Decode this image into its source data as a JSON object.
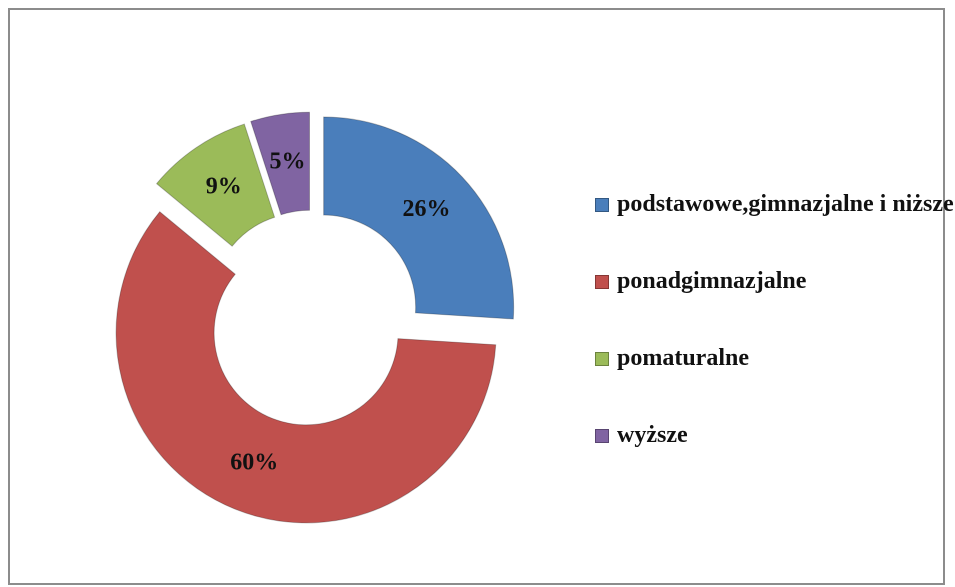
{
  "chart_data": {
    "type": "donut",
    "categories": [
      "podstawowe,gimnazjalne i niższe",
      "ponadgimnazjalne",
      "pomaturalne",
      "wyższe"
    ],
    "values": [
      26,
      60,
      9,
      5
    ],
    "value_labels": [
      "26%",
      "60%",
      "9%",
      "5%"
    ],
    "colors": [
      "#4a7ebb",
      "#c0504d",
      "#9bbb59",
      "#8064a2"
    ],
    "legend": "right"
  }
}
